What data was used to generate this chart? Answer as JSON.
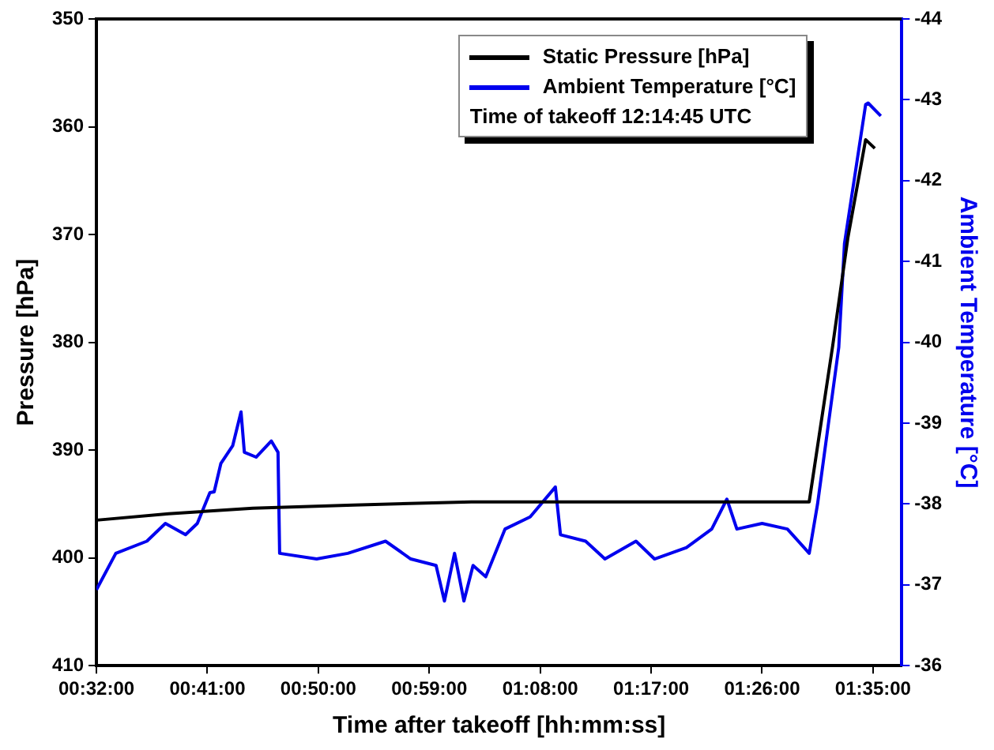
{
  "chart_data": {
    "type": "line",
    "xlabel": "Time after takeoff [hh:mm:ss]",
    "ylabel": "Pressure [hPa]",
    "y2label": "Ambient Temperature [°C]",
    "annotations": [
      "Time of takeoff 12:14:45 UTC"
    ],
    "xlim": [
      0.5333,
      1.6222
    ],
    "xticks": [
      {
        "value": 0.5333,
        "label": "00:32:00"
      },
      {
        "value": 0.6833,
        "label": "00:41:00"
      },
      {
        "value": 0.8333,
        "label": "00:50:00"
      },
      {
        "value": 0.9833,
        "label": "00:59:00"
      },
      {
        "value": 1.1333,
        "label": "01:08:00"
      },
      {
        "value": 1.2833,
        "label": "01:17:00"
      },
      {
        "value": 1.4333,
        "label": "01:26:00"
      },
      {
        "value": 1.5833,
        "label": "01:35:00"
      }
    ],
    "ylim": [
      410,
      350
    ],
    "yticks": [
      350,
      360,
      370,
      380,
      390,
      400,
      410
    ],
    "y2lim": [
      -36,
      -44
    ],
    "y2ticks": [
      -44,
      -43,
      -42,
      -41,
      -40,
      -39,
      -38,
      -37,
      -36
    ],
    "grid": false,
    "legend": "top right",
    "marker": "none",
    "line_style": "solid",
    "series": [
      {
        "name": "Static Pressure [hPa]",
        "color": "#000000",
        "x": [
          0.5333,
          0.631,
          0.7447,
          0.881,
          1.0402,
          1.2675,
          1.497,
          1.5288,
          1.5493,
          1.5733,
          1.5857
        ],
        "values": [
          396.5,
          395.9,
          395.4,
          395.1,
          394.8,
          394.8,
          394.8,
          380.3,
          370.3,
          361.2,
          362.0
        ]
      },
      {
        "name": "Ambient Temperature [°C]",
        "color": "#0000ee",
        "axis": "y2",
        "x": [
          0.5333,
          0.5595,
          0.6015,
          0.6265,
          0.6538,
          0.6697,
          0.6867,
          0.6925,
          0.7015,
          0.7175,
          0.7288,
          0.7333,
          0.7492,
          0.7697,
          0.7788,
          0.781,
          0.831,
          0.8732,
          0.9242,
          0.9583,
          0.9925,
          1.0038,
          1.0175,
          1.0302,
          1.0425,
          1.0597,
          1.0857,
          1.1197,
          1.1538,
          1.1607,
          1.1947,
          1.2208,
          1.2628,
          1.2878,
          1.331,
          1.3652,
          1.3857,
          1.3992,
          1.4333,
          1.4675,
          1.497,
          1.5083,
          1.537,
          1.5447,
          1.5733,
          1.5767,
          1.5938
        ],
        "values": [
          -36.94,
          -37.39,
          -37.54,
          -37.76,
          -37.62,
          -37.76,
          -38.14,
          -38.15,
          -38.5,
          -38.72,
          -39.14,
          -38.64,
          -38.58,
          -38.78,
          -38.64,
          -37.39,
          -37.32,
          -37.39,
          -37.54,
          -37.32,
          -37.24,
          -36.8,
          -37.39,
          -36.8,
          -37.24,
          -37.1,
          -37.69,
          -37.84,
          -38.21,
          -37.62,
          -37.54,
          -37.32,
          -37.54,
          -37.32,
          -37.46,
          -37.69,
          -38.06,
          -37.69,
          -37.76,
          -37.69,
          -37.39,
          -38.0,
          -39.94,
          -41.22,
          -42.94,
          -42.96,
          -42.8
        ]
      }
    ]
  }
}
